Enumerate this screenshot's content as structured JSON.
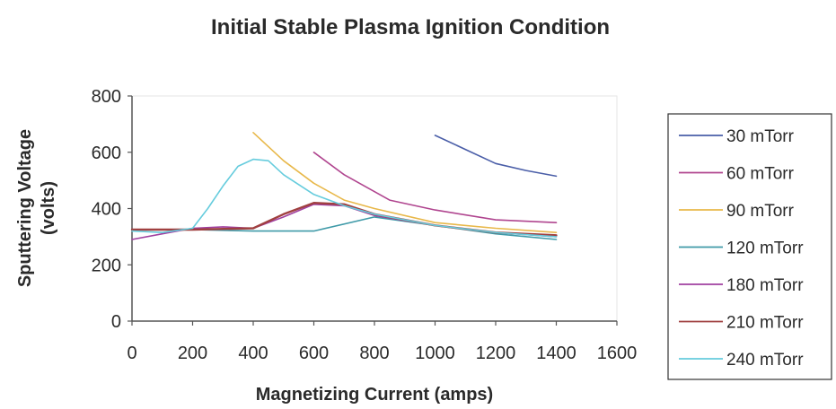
{
  "chart_data": {
    "type": "line",
    "title": "Initial Stable Plasma Ignition Condition",
    "xlabel": "Magnetizing Current (amps)",
    "ylabel": "Sputtering Voltage (volts)",
    "ylabel_lines": [
      "Sputtering Voltage",
      "(volts)"
    ],
    "xlim": [
      0,
      1600
    ],
    "ylim": [
      0,
      800
    ],
    "xticks": [
      0,
      200,
      400,
      600,
      800,
      1000,
      1200,
      1400,
      1600
    ],
    "yticks": [
      0,
      200,
      400,
      600,
      800
    ],
    "grid": false,
    "legend_position": "right",
    "series": [
      {
        "name": "30 mTorr",
        "color": "#4a5ea8",
        "x": [
          1000,
          1100,
          1200,
          1300,
          1400
        ],
        "y": [
          660,
          610,
          560,
          535,
          515
        ]
      },
      {
        "name": "60 mTorr",
        "color": "#b0458f",
        "x": [
          600,
          700,
          850,
          1000,
          1200,
          1400
        ],
        "y": [
          600,
          520,
          430,
          395,
          360,
          350
        ]
      },
      {
        "name": "90 mTorr",
        "color": "#e8b84a",
        "x": [
          400,
          500,
          600,
          700,
          800,
          1000,
          1200,
          1400
        ],
        "y": [
          670,
          570,
          490,
          430,
          400,
          350,
          330,
          315
        ]
      },
      {
        "name": "120 mTorr",
        "color": "#3f9aa8",
        "x": [
          0,
          200,
          400,
          600,
          800,
          1000,
          1200,
          1400
        ],
        "y": [
          325,
          325,
          320,
          320,
          370,
          340,
          310,
          290
        ]
      },
      {
        "name": "180 mTorr",
        "color": "#a040a0",
        "x": [
          0,
          100,
          200,
          300,
          400,
          500,
          600,
          700,
          800,
          1000,
          1200,
          1400
        ],
        "y": [
          290,
          310,
          330,
          335,
          330,
          370,
          415,
          410,
          375,
          340,
          315,
          300
        ]
      },
      {
        "name": "210 mTorr",
        "color": "#a04040",
        "x": [
          0,
          200,
          400,
          500,
          600,
          700,
          800,
          1000,
          1200,
          1400
        ],
        "y": [
          325,
          325,
          330,
          380,
          420,
          415,
          380,
          340,
          315,
          305
        ]
      },
      {
        "name": "240 mTorr",
        "color": "#66ccdd",
        "x": [
          0,
          100,
          200,
          250,
          300,
          350,
          400,
          450,
          500,
          600,
          700,
          800,
          1000,
          1200,
          1400
        ],
        "y": [
          320,
          315,
          330,
          400,
          480,
          550,
          575,
          570,
          520,
          450,
          410,
          380,
          340,
          315,
          300
        ]
      }
    ]
  }
}
